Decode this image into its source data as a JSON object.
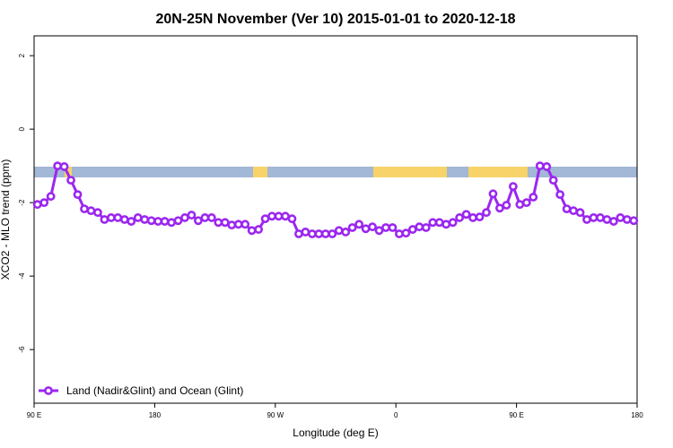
{
  "chart_data": {
    "type": "line",
    "title": "20N-25N November (Ver 10)   2015-01-01 to 2020-12-18",
    "x_label": "Longitude (deg E)",
    "y_label": "XCO2 - MLO trend (ppm)",
    "xlim": [
      90,
      540
    ],
    "ylim": [
      -7.46,
      2.54
    ],
    "xticks": [
      {
        "value": 90,
        "label": "90 E"
      },
      {
        "value": 180,
        "label": "180"
      },
      {
        "value": 270,
        "label": "90 W"
      },
      {
        "value": 360,
        "label": "0"
      },
      {
        "value": 450,
        "label": "90 E"
      },
      {
        "value": 540,
        "label": "180"
      }
    ],
    "yticks": [
      -6,
      -4,
      -2,
      0,
      2
    ],
    "legend": "bottom-left",
    "x": [
      92.5,
      97.5,
      102.5,
      107.5,
      112.5,
      117.5,
      122.5,
      127.5,
      132.5,
      137.5,
      142.5,
      147.5,
      152.5,
      157.5,
      162.5,
      167.5,
      172.5,
      177.5,
      182.5,
      187.5,
      192.5,
      197.5,
      202.5,
      207.5,
      212.5,
      217.5,
      222.5,
      227.5,
      232.5,
      237.5,
      242.5,
      247.5,
      252.5,
      257.5,
      262.5,
      267.5,
      272.5,
      277.5,
      282.5,
      287.5,
      292.5,
      297.5,
      302.5,
      307.5,
      312.5,
      317.5,
      322.5,
      327.5,
      332.5,
      337.5,
      342.5,
      347.5,
      352.5,
      357.5,
      362.5,
      367.5,
      372.5,
      377.5,
      382.5,
      387.5,
      392.5,
      397.5,
      402.5,
      407.5,
      412.5,
      417.5,
      422.5,
      427.5,
      432.5,
      437.5,
      442.5,
      447.5,
      452.5,
      457.5,
      462.5,
      467.5,
      472.5,
      477.5,
      482.5,
      487.5,
      492.5,
      497.5,
      502.5,
      507.5,
      512.5,
      517.5,
      522.5,
      527.5,
      532.5,
      537.5
    ],
    "series": [
      {
        "name": "Land (Nadir&Glint) and Ocean (Glint)",
        "color": "#9b27f0",
        "values": [
          -2.05,
          -2.0,
          -1.83,
          -1.0,
          -1.02,
          -1.39,
          -1.78,
          -2.17,
          -2.22,
          -2.27,
          -2.46,
          -2.41,
          -2.41,
          -2.46,
          -2.51,
          -2.41,
          -2.46,
          -2.49,
          -2.51,
          -2.51,
          -2.54,
          -2.49,
          -2.41,
          -2.34,
          -2.49,
          -2.41,
          -2.41,
          -2.54,
          -2.54,
          -2.61,
          -2.59,
          -2.59,
          -2.76,
          -2.73,
          -2.44,
          -2.37,
          -2.37,
          -2.37,
          -2.44,
          -2.85,
          -2.8,
          -2.85,
          -2.85,
          -2.85,
          -2.85,
          -2.76,
          -2.8,
          -2.68,
          -2.59,
          -2.71,
          -2.66,
          -2.76,
          -2.68,
          -2.68,
          -2.85,
          -2.83,
          -2.73,
          -2.66,
          -2.68,
          -2.54,
          -2.54,
          -2.59,
          -2.54,
          -2.41,
          -2.32,
          -2.41,
          -2.39,
          -2.27,
          -1.76,
          -2.15,
          -2.07,
          -1.56,
          -2.05,
          -2.0,
          -1.85,
          -1.0,
          -1.02,
          -1.39,
          -1.78,
          -2.17,
          -2.22,
          -2.27,
          -2.46,
          -2.41,
          -2.41,
          -2.46,
          -2.51,
          -2.41,
          -2.46,
          -2.49
        ]
      }
    ]
  }
}
